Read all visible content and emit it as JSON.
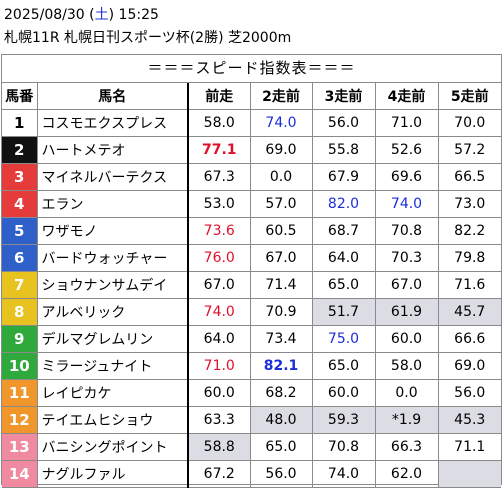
{
  "header": {
    "date": "2025/08/30",
    "day_open": "(",
    "day": "土",
    "day_close": ")",
    "time": "15:25",
    "race": "札幌11R 札幌日刊スポーツ杯(2勝) 芝2000m"
  },
  "table_title": "＝＝＝スピード指数表＝＝＝",
  "columns": [
    "馬番",
    "馬名",
    "前走",
    "2走前",
    "3走前",
    "4走前",
    "5走前"
  ],
  "colors": {
    "highlight_red": "#e0102a",
    "highlight_blue": "#1a2fd8",
    "shade": "#dcdce4"
  },
  "rows": [
    {
      "no": "1",
      "name": "コスモエクスプレス",
      "bg": "#ffffff",
      "fg": "#000000",
      "values": [
        "58.0",
        "74.0",
        "56.0",
        "71.0",
        "70.0"
      ],
      "styles": [
        "",
        "blue",
        "",
        "",
        ""
      ],
      "shaded": [
        false,
        false,
        false,
        false,
        false
      ]
    },
    {
      "no": "2",
      "name": "ハートメテオ",
      "bg": "#111111",
      "fg": "#ffffff",
      "values": [
        "77.1",
        "69.0",
        "55.8",
        "52.6",
        "57.2"
      ],
      "styles": [
        "red bold",
        "",
        "",
        "",
        ""
      ],
      "shaded": [
        false,
        false,
        false,
        false,
        false
      ]
    },
    {
      "no": "3",
      "name": "マイネルバーテクス",
      "bg": "#e63b3b",
      "fg": "#ffffff",
      "values": [
        "67.3",
        "0.0",
        "67.9",
        "69.6",
        "66.5"
      ],
      "styles": [
        "",
        "",
        "",
        "",
        ""
      ],
      "shaded": [
        false,
        false,
        false,
        false,
        false
      ]
    },
    {
      "no": "4",
      "name": "エラン",
      "bg": "#e63b3b",
      "fg": "#ffffff",
      "values": [
        "53.0",
        "57.0",
        "82.0",
        "74.0",
        "73.0"
      ],
      "styles": [
        "",
        "",
        "blue",
        "blue",
        ""
      ],
      "shaded": [
        false,
        false,
        false,
        false,
        false
      ]
    },
    {
      "no": "5",
      "name": "ワザモノ",
      "bg": "#2f5fc8",
      "fg": "#ffffff",
      "values": [
        "73.6",
        "60.5",
        "68.7",
        "70.8",
        "82.2"
      ],
      "styles": [
        "red",
        "",
        "",
        "",
        ""
      ],
      "shaded": [
        false,
        false,
        false,
        false,
        false
      ]
    },
    {
      "no": "6",
      "name": "バードウォッチャー",
      "bg": "#2f5fc8",
      "fg": "#ffffff",
      "values": [
        "76.0",
        "67.0",
        "64.0",
        "70.3",
        "79.8"
      ],
      "styles": [
        "red",
        "",
        "",
        "",
        ""
      ],
      "shaded": [
        false,
        false,
        false,
        false,
        false
      ]
    },
    {
      "no": "7",
      "name": "ショウナンサムデイ",
      "bg": "#e8c21e",
      "fg": "#ffffff",
      "values": [
        "67.0",
        "71.4",
        "65.0",
        "67.0",
        "71.6"
      ],
      "styles": [
        "",
        "",
        "",
        "",
        ""
      ],
      "shaded": [
        false,
        false,
        false,
        false,
        false
      ]
    },
    {
      "no": "8",
      "name": "アルベリック",
      "bg": "#e8c21e",
      "fg": "#ffffff",
      "values": [
        "74.0",
        "70.9",
        "51.7",
        "61.9",
        "45.7"
      ],
      "styles": [
        "red",
        "",
        "",
        "",
        ""
      ],
      "shaded": [
        false,
        false,
        true,
        true,
        true
      ]
    },
    {
      "no": "9",
      "name": "デルマグレムリン",
      "bg": "#2fa83c",
      "fg": "#ffffff",
      "values": [
        "64.0",
        "73.4",
        "75.0",
        "60.0",
        "66.6"
      ],
      "styles": [
        "",
        "",
        "blue",
        "",
        ""
      ],
      "shaded": [
        false,
        false,
        false,
        false,
        false
      ]
    },
    {
      "no": "10",
      "name": "ミラージュナイト",
      "bg": "#2fa83c",
      "fg": "#ffffff",
      "values": [
        "71.0",
        "82.1",
        "65.0",
        "58.0",
        "69.0"
      ],
      "styles": [
        "red",
        "blue bold",
        "",
        "",
        ""
      ],
      "shaded": [
        false,
        false,
        false,
        false,
        false
      ]
    },
    {
      "no": "11",
      "name": "レイピカケ",
      "bg": "#f0962a",
      "fg": "#ffffff",
      "values": [
        "60.0",
        "68.2",
        "60.0",
        "0.0",
        "56.0"
      ],
      "styles": [
        "",
        "",
        "",
        "",
        ""
      ],
      "shaded": [
        false,
        false,
        false,
        false,
        false
      ]
    },
    {
      "no": "12",
      "name": "テイエムヒショウ",
      "bg": "#f0962a",
      "fg": "#ffffff",
      "values": [
        "63.3",
        "48.0",
        "59.3",
        "*1.9",
        "45.3"
      ],
      "styles": [
        "",
        "",
        "",
        "",
        ""
      ],
      "shaded": [
        false,
        true,
        true,
        true,
        true
      ]
    },
    {
      "no": "13",
      "name": "バニシングポイント",
      "bg": "#f08aa0",
      "fg": "#ffffff",
      "values": [
        "58.8",
        "65.0",
        "70.8",
        "66.3",
        "71.1"
      ],
      "styles": [
        "",
        "",
        "",
        "",
        ""
      ],
      "shaded": [
        true,
        false,
        false,
        false,
        false
      ]
    },
    {
      "no": "14",
      "name": "ナグルファル",
      "bg": "#f08aa0",
      "fg": "#ffffff",
      "values": [
        "67.2",
        "56.0",
        "74.0",
        "62.0",
        ""
      ],
      "styles": [
        "",
        "",
        "",
        "",
        ""
      ],
      "shaded": [
        false,
        false,
        false,
        false,
        true
      ]
    }
  ]
}
